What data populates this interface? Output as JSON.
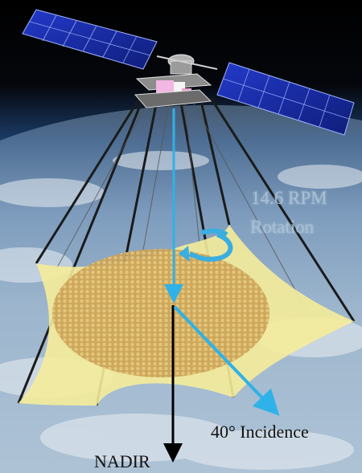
{
  "figure": {
    "rotation_label_line1": "14.6 RPM",
    "rotation_label_line2": "Rotation",
    "incidence_label": "40° Incidence",
    "nadir_label": "NADIR"
  },
  "colors": {
    "beam_arrow": "#2fb2e8",
    "reflector_mesh": "#f5ec9a",
    "feed_array": "#d9b25c",
    "nadir_arrow": "#000000",
    "solar_panel": "#1c2f9e"
  },
  "icons": {
    "rotation": "curved-arrow-icon"
  }
}
